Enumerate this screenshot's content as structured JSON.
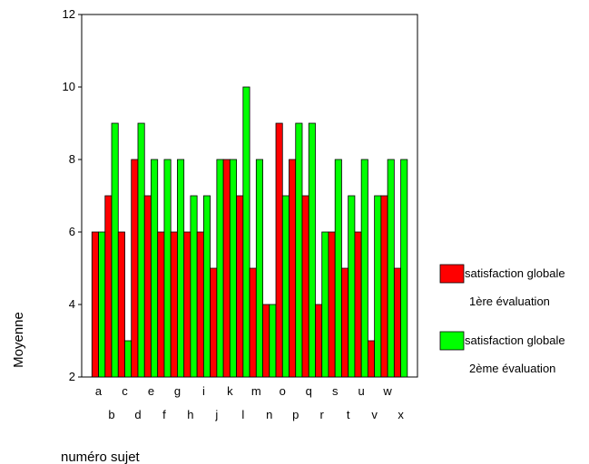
{
  "chart_data": {
    "type": "bar",
    "xlabel": "numéro sujet",
    "ylabel": "Moyenne",
    "ylim": [
      2,
      12
    ],
    "yticks": [
      2,
      4,
      6,
      8,
      10,
      12
    ],
    "grid": false,
    "legend_position": "right",
    "categories": [
      "a",
      "b",
      "c",
      "d",
      "e",
      "f",
      "g",
      "h",
      "i",
      "j",
      "k",
      "l",
      "m",
      "n",
      "o",
      "p",
      "q",
      "r",
      "s",
      "t",
      "u",
      "v",
      "w",
      "x"
    ],
    "series": [
      {
        "name": "satisfaction globale 1ère évaluation",
        "name_lines": [
          "satisfaction globale",
          "1ère évaluation"
        ],
        "color": "#ff0000",
        "values": [
          6,
          7,
          6,
          8,
          7,
          6,
          6,
          6,
          6,
          5,
          8,
          7,
          5,
          4,
          9,
          8,
          7,
          4,
          6,
          5,
          6,
          3,
          7,
          5
        ]
      },
      {
        "name": "satisfaction globale 2ème évaluation",
        "name_lines": [
          "satisfaction globale",
          "2ème évaluation"
        ],
        "color": "#00ff00",
        "values": [
          6,
          9,
          3,
          9,
          8,
          8,
          8,
          7,
          7,
          8,
          8,
          10,
          8,
          4,
          7,
          9,
          9,
          6,
          8,
          7,
          8,
          7,
          8,
          8
        ]
      }
    ]
  }
}
